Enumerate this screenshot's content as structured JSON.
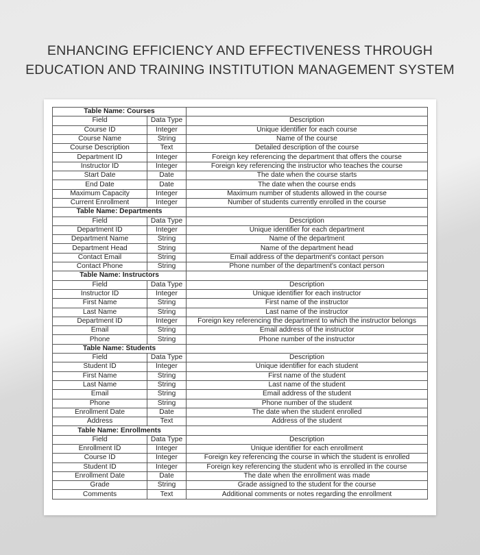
{
  "title": {
    "line1": "ENHANCING EFFICIENCY AND EFFECTIVENESS THROUGH",
    "line2": "EDUCATION AND TRAINING INSTITUTION MANAGEMENT SYSTEM"
  },
  "columns": [
    "Field",
    "Data Type",
    "Description"
  ],
  "tables": [
    {
      "name": "Table Name: Courses",
      "rows": [
        [
          "Course ID",
          "Integer",
          "Unique identifier for each course"
        ],
        [
          "Course Name",
          "String",
          "Name of the course"
        ],
        [
          "Course Description",
          "Text",
          "Detailed description of the course"
        ],
        [
          "Department ID",
          "Integer",
          "Foreign key referencing the department that offers the course"
        ],
        [
          "Instructor ID",
          "Integer",
          "Foreign key referencing the instructor who teaches the course"
        ],
        [
          "Start Date",
          "Date",
          "The date when the course starts"
        ],
        [
          "End Date",
          "Date",
          "The date when the course ends"
        ],
        [
          "Maximum Capacity",
          "Integer",
          "Maximum number of students allowed in the course"
        ],
        [
          "Current Enrollment",
          "Integer",
          "Number of students currently enrolled in the course"
        ]
      ]
    },
    {
      "name": "Table Name: Departments",
      "rows": [
        [
          "Department ID",
          "Integer",
          "Unique identifier for each department"
        ],
        [
          "Department Name",
          "String",
          "Name of the department"
        ],
        [
          "Department Head",
          "String",
          "Name of the department head"
        ],
        [
          "Contact Email",
          "String",
          "Email address of the department's contact person"
        ],
        [
          "Contact Phone",
          "String",
          "Phone number of the department's contact person"
        ]
      ]
    },
    {
      "name": "Table Name: Instructors",
      "rows": [
        [
          "Instructor ID",
          "Integer",
          "Unique identifier for each instructor"
        ],
        [
          "First Name",
          "String",
          "First name of the instructor"
        ],
        [
          "Last Name",
          "String",
          "Last name of the instructor"
        ],
        [
          "Department ID",
          "Integer",
          "Foreign key referencing the department to which the instructor belongs"
        ],
        [
          "Email",
          "String",
          "Email address of the instructor"
        ],
        [
          "Phone",
          "String",
          "Phone number of the instructor"
        ]
      ]
    },
    {
      "name": "Table Name: Students",
      "rows": [
        [
          "Student ID",
          "Integer",
          "Unique identifier for each student"
        ],
        [
          "First Name",
          "String",
          "First name of the student"
        ],
        [
          "Last Name",
          "String",
          "Last name of the student"
        ],
        [
          "Email",
          "String",
          "Email address of the student"
        ],
        [
          "Phone",
          "String",
          "Phone number of the student"
        ],
        [
          "Enrollment Date",
          "Date",
          "The date when the student enrolled"
        ],
        [
          "Address",
          "Text",
          "Address of the student"
        ]
      ]
    },
    {
      "name": "Table Name: Enrollments",
      "rows": [
        [
          "Enrollment ID",
          "Integer",
          "Unique identifier for each enrollment"
        ],
        [
          "Course ID",
          "Integer",
          "Foreign key referencing the course in which the student is enrolled"
        ],
        [
          "Student ID",
          "Integer",
          "Foreign key referencing the student who is enrolled in the course"
        ],
        [
          "Enrollment Date",
          "Date",
          "The date when the enrollment was made"
        ],
        [
          "Grade",
          "String",
          "Grade assigned to the student for the course"
        ],
        [
          "Comments",
          "Text",
          "Additional comments or notes regarding the enrollment"
        ]
      ]
    }
  ]
}
